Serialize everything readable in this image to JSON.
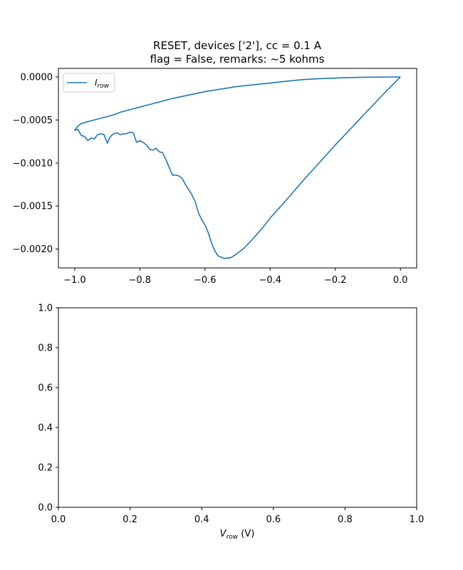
{
  "figure": {
    "title_line1": "RESET, devices ['2'], cc = 0.1 A",
    "title_line2": "flag = False, remarks: ~5 kohms"
  },
  "colors": {
    "line": "#1f77b4",
    "axes": "#000000"
  },
  "chart_data": [
    {
      "type": "line",
      "title": "RESET, devices ['2'], cc = 0.1 A\nflag = False, remarks: ~5 kohms",
      "xlim": [
        -1.05,
        0.05
      ],
      "ylim": [
        -0.00222,
        0.0001
      ],
      "xticks": [
        -1.0,
        -0.8,
        -0.6,
        -0.4,
        -0.2,
        0.0
      ],
      "xtick_labels": [
        "−1.0",
        "−0.8",
        "−0.6",
        "−0.4",
        "−0.2",
        "0.0"
      ],
      "yticks": [
        0.0,
        -0.0005,
        -0.001,
        -0.0015,
        -0.002
      ],
      "ytick_labels": [
        "0.0000",
        "−0.0005",
        "−0.0010",
        "−0.0015",
        "−0.0020"
      ],
      "legend": {
        "location": "upper left",
        "entry_main": "I",
        "entry_sub": "row"
      },
      "series": [
        {
          "name": "I_row",
          "x": [
            0.0,
            -0.05,
            -0.1,
            -0.15,
            -0.2,
            -0.25,
            -0.3,
            -0.35,
            -0.4,
            -0.42,
            -0.45,
            -0.48,
            -0.5,
            -0.52,
            -0.54,
            -0.56,
            -0.57,
            -0.58,
            -0.59,
            -0.6,
            -0.61,
            -0.62,
            -0.63,
            -0.64,
            -0.65,
            -0.66,
            -0.67,
            -0.68,
            -0.69,
            -0.7,
            -0.71,
            -0.72,
            -0.73,
            -0.74,
            -0.75,
            -0.76,
            -0.77,
            -0.78,
            -0.79,
            -0.8,
            -0.81,
            -0.82,
            -0.83,
            -0.84,
            -0.85,
            -0.86,
            -0.87,
            -0.88,
            -0.89,
            -0.9,
            -0.91,
            -0.92,
            -0.93,
            -0.94,
            -0.95,
            -0.96,
            -0.97,
            -0.98,
            -0.99,
            -1.0,
            -1.0,
            -0.99,
            -0.98,
            -0.96,
            -0.94,
            -0.92,
            -0.9,
            -0.88,
            -0.86,
            -0.84,
            -0.82,
            -0.8,
            -0.78,
            -0.76,
            -0.74,
            -0.72,
            -0.7,
            -0.65,
            -0.6,
            -0.55,
            -0.5,
            -0.45,
            -0.4,
            -0.35,
            -0.3,
            -0.25,
            -0.2,
            -0.15,
            -0.1,
            -0.05,
            0.0
          ],
          "y": [
            0.0,
            -0.00019,
            -0.00039,
            -0.00059,
            -0.00079,
            -0.001,
            -0.00121,
            -0.00143,
            -0.00164,
            -0.00174,
            -0.00187,
            -0.00199,
            -0.00205,
            -0.0021,
            -0.00211,
            -0.00208,
            -0.00202,
            -0.00193,
            -0.00181,
            -0.00172,
            -0.00166,
            -0.00158,
            -0.00145,
            -0.00137,
            -0.00131,
            -0.00125,
            -0.00118,
            -0.00115,
            -0.00114,
            -0.00114,
            -0.00105,
            -0.00096,
            -0.00088,
            -0.00087,
            -0.00083,
            -0.00085,
            -0.00084,
            -0.00079,
            -0.00076,
            -0.00074,
            -0.00076,
            -0.00065,
            -0.00064,
            -0.00066,
            -0.00066,
            -0.00067,
            -0.00065,
            -0.00066,
            -0.00069,
            -0.00077,
            -0.00067,
            -0.00066,
            -0.00067,
            -0.00072,
            -0.00071,
            -0.00074,
            -0.00069,
            -0.00068,
            -0.00061,
            -0.00062,
            -0.00062,
            -0.00057,
            -0.00054,
            -0.00052,
            -0.0005,
            -0.00048,
            -0.00046,
            -0.00044,
            -0.00041,
            -0.00039,
            -0.00037,
            -0.00035,
            -0.00033,
            -0.00031,
            -0.00029,
            -0.00027,
            -0.00025,
            -0.00021,
            -0.00017,
            -0.00014,
            -0.00011,
            -9e-05,
            -7e-05,
            -5e-05,
            -3e-05,
            -2e-05,
            -1.2e-05,
            -6e-06,
            -2e-06,
            -5e-07,
            0.0
          ]
        }
      ]
    },
    {
      "type": "line",
      "xlim": [
        0.0,
        1.0
      ],
      "ylim": [
        0.0,
        1.0
      ],
      "xticks": [
        0.0,
        0.2,
        0.4,
        0.6,
        0.8,
        1.0
      ],
      "xtick_labels": [
        "0.0",
        "0.2",
        "0.4",
        "0.6",
        "0.8",
        "1.0"
      ],
      "yticks": [
        0.0,
        0.2,
        0.4,
        0.6,
        0.8,
        1.0
      ],
      "ytick_labels": [
        "0.0",
        "0.2",
        "0.4",
        "0.6",
        "0.8",
        "1.0"
      ],
      "xlabel_main": "V",
      "xlabel_sub": "row",
      "xlabel_unit": " (V)",
      "series": []
    }
  ]
}
